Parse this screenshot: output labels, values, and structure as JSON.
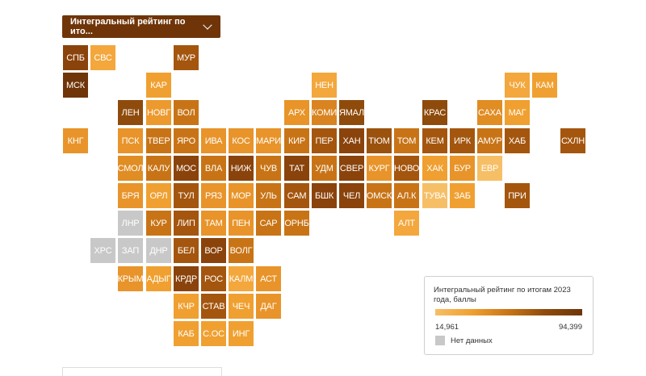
{
  "dropdown": {
    "label": "Интегральный рейтинг по ито..."
  },
  "legend": {
    "title": "Интегральный рейтинг по итогам 2023 года, баллы",
    "min": "14,961",
    "max": "94,399",
    "no_data": "Нет данных"
  },
  "colors": {
    "no_data": "#c8c8c8",
    "dark": "#6f3509",
    "light": "#f6bf66"
  },
  "regions": [
    {
      "label": "СПБ",
      "col": 0,
      "row": 0,
      "color": "#8a430b"
    },
    {
      "label": "СВС",
      "col": 1,
      "row": 0,
      "color": "#f3a73c"
    },
    {
      "label": "МУР",
      "col": 4,
      "row": 0,
      "color": "#a4560e"
    },
    {
      "label": "МСК",
      "col": 0,
      "row": 1,
      "color": "#6f3509"
    },
    {
      "label": "КАР",
      "col": 3,
      "row": 1,
      "color": "#f0a030"
    },
    {
      "label": "НЕН",
      "col": 9,
      "row": 1,
      "color": "#f3a73c"
    },
    {
      "label": "ЧУК",
      "col": 16,
      "row": 1,
      "color": "#f3a73c"
    },
    {
      "label": "КАМ",
      "col": 17,
      "row": 1,
      "color": "#f0a030"
    },
    {
      "label": "ЛЕН",
      "col": 2,
      "row": 2,
      "color": "#8e4b0c"
    },
    {
      "label": "НОВГ",
      "col": 3,
      "row": 2,
      "color": "#ec9a2e"
    },
    {
      "label": "ВОЛ",
      "col": 4,
      "row": 2,
      "color": "#c87416"
    },
    {
      "label": "АРХ",
      "col": 8,
      "row": 2,
      "color": "#e89428"
    },
    {
      "label": "КОМИ",
      "col": 9,
      "row": 2,
      "color": "#d98420"
    },
    {
      "label": "ЯМАЛ",
      "col": 10,
      "row": 2,
      "color": "#8e4b0c"
    },
    {
      "label": "КРАС",
      "col": 13,
      "row": 2,
      "color": "#8e4b0c"
    },
    {
      "label": "САХА",
      "col": 15,
      "row": 2,
      "color": "#e08d24"
    },
    {
      "label": "МАГ",
      "col": 16,
      "row": 2,
      "color": "#f0a030"
    },
    {
      "label": "КНГ",
      "col": 0,
      "row": 3,
      "color": "#e8942a"
    },
    {
      "label": "ПСК",
      "col": 2,
      "row": 3,
      "color": "#e8942a"
    },
    {
      "label": "ТВЕР",
      "col": 3,
      "row": 3,
      "color": "#c87416"
    },
    {
      "label": "ЯРО",
      "col": 4,
      "row": 3,
      "color": "#c87416"
    },
    {
      "label": "ИВА",
      "col": 5,
      "row": 3,
      "color": "#e8942a"
    },
    {
      "label": "КОС",
      "col": 6,
      "row": 3,
      "color": "#e8942a"
    },
    {
      "label": "МАРИ",
      "col": 7,
      "row": 3,
      "color": "#e8942a"
    },
    {
      "label": "КИР",
      "col": 8,
      "row": 3,
      "color": "#c87416"
    },
    {
      "label": "ПЕР",
      "col": 9,
      "row": 3,
      "color": "#a4560e"
    },
    {
      "label": "ХАН",
      "col": 10,
      "row": 3,
      "color": "#8a430b"
    },
    {
      "label": "ТЮМ",
      "col": 11,
      "row": 3,
      "color": "#9b520d"
    },
    {
      "label": "ТОМ",
      "col": 12,
      "row": 3,
      "color": "#c87416"
    },
    {
      "label": "КЕМ",
      "col": 13,
      "row": 3,
      "color": "#a4560e"
    },
    {
      "label": "ИРК",
      "col": 14,
      "row": 3,
      "color": "#a4560e"
    },
    {
      "label": "АМУР",
      "col": 15,
      "row": 3,
      "color": "#c87416"
    },
    {
      "label": "ХАБ",
      "col": 16,
      "row": 3,
      "color": "#a4560e"
    },
    {
      "label": "СХЛН",
      "col": 18,
      "row": 3,
      "color": "#a4560e"
    },
    {
      "label": "СМОЛ",
      "col": 2,
      "row": 4,
      "color": "#e08d24"
    },
    {
      "label": "КАЛУ",
      "col": 3,
      "row": 4,
      "color": "#c87416"
    },
    {
      "label": "МОС",
      "col": 4,
      "row": 4,
      "color": "#8a430b"
    },
    {
      "label": "ВЛА",
      "col": 5,
      "row": 4,
      "color": "#c87416"
    },
    {
      "label": "НИЖ",
      "col": 6,
      "row": 4,
      "color": "#8a430b"
    },
    {
      "label": "ЧУВ",
      "col": 7,
      "row": 4,
      "color": "#c87416"
    },
    {
      "label": "ТАТ",
      "col": 8,
      "row": 4,
      "color": "#8a430b"
    },
    {
      "label": "УДМ",
      "col": 9,
      "row": 4,
      "color": "#c87416"
    },
    {
      "label": "СВЕР",
      "col": 10,
      "row": 4,
      "color": "#8a430b"
    },
    {
      "label": "КУРГ",
      "col": 11,
      "row": 4,
      "color": "#e8942a"
    },
    {
      "label": "НОВО",
      "col": 12,
      "row": 4,
      "color": "#a4560e"
    },
    {
      "label": "ХАК",
      "col": 13,
      "row": 4,
      "color": "#f0a030"
    },
    {
      "label": "БУР",
      "col": 14,
      "row": 4,
      "color": "#e8942a"
    },
    {
      "label": "ЕВР",
      "col": 15,
      "row": 4,
      "color": "#f6bf66"
    },
    {
      "label": "БРЯ",
      "col": 2,
      "row": 5,
      "color": "#e8942a"
    },
    {
      "label": "ОРЛ",
      "col": 3,
      "row": 5,
      "color": "#f0a030"
    },
    {
      "label": "ТУЛ",
      "col": 4,
      "row": 5,
      "color": "#a4560e"
    },
    {
      "label": "РЯЗ",
      "col": 5,
      "row": 5,
      "color": "#e8942a"
    },
    {
      "label": "МОР",
      "col": 6,
      "row": 5,
      "color": "#e8942a"
    },
    {
      "label": "УЛЬ",
      "col": 7,
      "row": 5,
      "color": "#c87416"
    },
    {
      "label": "САМ",
      "col": 8,
      "row": 5,
      "color": "#a4560e"
    },
    {
      "label": "БШК",
      "col": 9,
      "row": 5,
      "color": "#8a430b"
    },
    {
      "label": "ЧЕЛ",
      "col": 10,
      "row": 5,
      "color": "#8a430b"
    },
    {
      "label": "ОМСК",
      "col": 11,
      "row": 5,
      "color": "#c87416"
    },
    {
      "label": "АЛ.К",
      "col": 12,
      "row": 5,
      "color": "#c87416"
    },
    {
      "label": "ТУВА",
      "col": 13,
      "row": 5,
      "color": "#f6bf66"
    },
    {
      "label": "ЗАБ",
      "col": 14,
      "row": 5,
      "color": "#f0a030"
    },
    {
      "label": "ПРИ",
      "col": 16,
      "row": 5,
      "color": "#a4560e"
    },
    {
      "label": "ЛНР",
      "col": 2,
      "row": 6,
      "color": "#c8c8c8"
    },
    {
      "label": "КУР",
      "col": 3,
      "row": 6,
      "color": "#c87416"
    },
    {
      "label": "ЛИП",
      "col": 4,
      "row": 6,
      "color": "#a4560e"
    },
    {
      "label": "ТАМ",
      "col": 5,
      "row": 6,
      "color": "#e8942a"
    },
    {
      "label": "ПЕН",
      "col": 6,
      "row": 6,
      "color": "#e8942a"
    },
    {
      "label": "САР",
      "col": 7,
      "row": 6,
      "color": "#c87416"
    },
    {
      "label": "ОРНБ",
      "col": 8,
      "row": 6,
      "color": "#c87416"
    },
    {
      "label": "АЛТ",
      "col": 12,
      "row": 6,
      "color": "#f3a73c"
    },
    {
      "label": "ХРС",
      "col": 1,
      "row": 7,
      "color": "#c8c8c8"
    },
    {
      "label": "ЗАП",
      "col": 2,
      "row": 7,
      "color": "#c8c8c8"
    },
    {
      "label": "ДНР",
      "col": 3,
      "row": 7,
      "color": "#c8c8c8"
    },
    {
      "label": "БЕЛ",
      "col": 4,
      "row": 7,
      "color": "#a4560e"
    },
    {
      "label": "ВОР",
      "col": 5,
      "row": 7,
      "color": "#8a430b"
    },
    {
      "label": "ВОЛГ",
      "col": 6,
      "row": 7,
      "color": "#c87416"
    },
    {
      "label": "КРЫМ",
      "col": 2,
      "row": 8,
      "color": "#e8942a"
    },
    {
      "label": "АДЫГ",
      "col": 3,
      "row": 8,
      "color": "#f0a030"
    },
    {
      "label": "КРДР",
      "col": 4,
      "row": 8,
      "color": "#8a430b"
    },
    {
      "label": "РОС",
      "col": 5,
      "row": 8,
      "color": "#a4560e"
    },
    {
      "label": "КАЛМ",
      "col": 6,
      "row": 8,
      "color": "#f3a73c"
    },
    {
      "label": "АСТ",
      "col": 7,
      "row": 8,
      "color": "#e8942a"
    },
    {
      "label": "КЧР",
      "col": 4,
      "row": 9,
      "color": "#f0a030"
    },
    {
      "label": "СТАВ",
      "col": 5,
      "row": 9,
      "color": "#a4560e"
    },
    {
      "label": "ЧЕЧ",
      "col": 6,
      "row": 9,
      "color": "#f0a030"
    },
    {
      "label": "ДАГ",
      "col": 7,
      "row": 9,
      "color": "#e8942a"
    },
    {
      "label": "КАБ",
      "col": 4,
      "row": 10,
      "color": "#f0a030"
    },
    {
      "label": "С.ОС",
      "col": 5,
      "row": 10,
      "color": "#f0a030"
    },
    {
      "label": "ИНГ",
      "col": 6,
      "row": 10,
      "color": "#f0a030"
    }
  ]
}
